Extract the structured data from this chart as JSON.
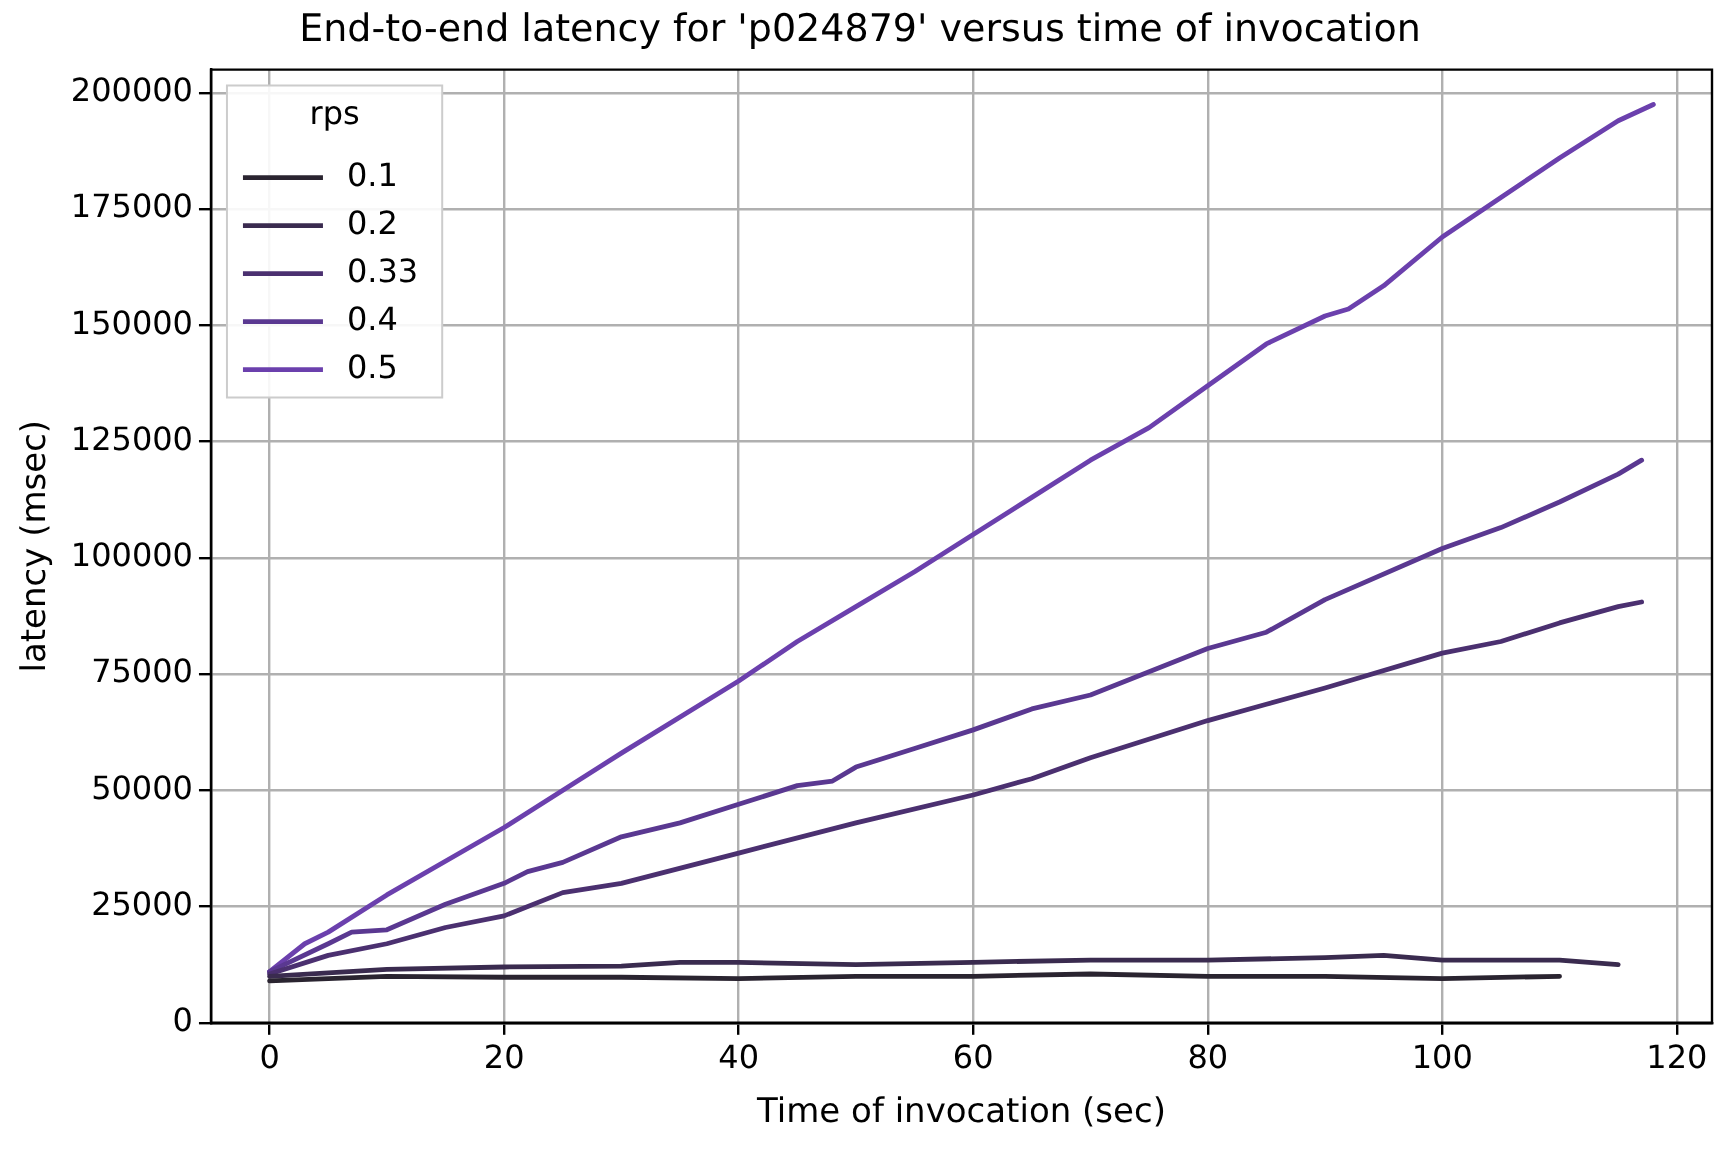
{
  "chart_data": {
    "type": "line",
    "title": "End-to-end latency for 'p024879' versus time of invocation",
    "xlabel": "Time of invocation (sec)",
    "ylabel": "latency (msec)",
    "legend_title": "rps",
    "legend": "top left",
    "grid": true,
    "line_style": "solid",
    "marker": "none",
    "xlim": [
      -5,
      123
    ],
    "xticks": [
      0,
      20,
      40,
      60,
      80,
      100,
      120
    ],
    "ylim": [
      0,
      205000
    ],
    "yticks": [
      0,
      25000,
      50000,
      75000,
      100000,
      125000,
      150000,
      175000,
      200000
    ],
    "series": [
      {
        "name": "0.1",
        "color": "#2a2430",
        "x": [
          0,
          10,
          20,
          30,
          40,
          50,
          60,
          70,
          80,
          90,
          100,
          110
        ],
        "values": [
          9000,
          10000,
          9800,
          9800,
          9500,
          10000,
          10000,
          10500,
          10000,
          10000,
          9500,
          10000
        ]
      },
      {
        "name": "0.2",
        "color": "#3a2b4f",
        "x": [
          0,
          10,
          20,
          30,
          35,
          40,
          50,
          60,
          70,
          80,
          90,
          95,
          100,
          110,
          115
        ],
        "values": [
          10000,
          11500,
          12000,
          12200,
          13000,
          13000,
          12500,
          13000,
          13500,
          13500,
          14000,
          14500,
          13500,
          13500,
          12500
        ]
      },
      {
        "name": "0.33",
        "color": "#4b3070",
        "x": [
          0,
          5,
          10,
          15,
          20,
          25,
          30,
          40,
          50,
          60,
          65,
          70,
          80,
          85,
          90,
          100,
          105,
          110,
          115,
          117
        ],
        "values": [
          10500,
          14500,
          17000,
          20500,
          23000,
          28000,
          30000,
          36500,
          43000,
          49000,
          52500,
          57000,
          65000,
          68500,
          72000,
          79500,
          82000,
          86000,
          89500,
          90500
        ]
      },
      {
        "name": "0.4",
        "color": "#5a3891",
        "x": [
          0,
          5,
          7,
          10,
          15,
          20,
          22,
          25,
          30,
          35,
          40,
          45,
          48,
          50,
          55,
          60,
          65,
          70,
          80,
          85,
          90,
          100,
          105,
          110,
          115,
          117
        ],
        "values": [
          11000,
          17000,
          19500,
          20000,
          25500,
          30000,
          32500,
          34500,
          40000,
          43000,
          47000,
          51000,
          52000,
          55000,
          59000,
          63000,
          67500,
          70500,
          80500,
          84000,
          91000,
          102000,
          106500,
          112000,
          118000,
          121000
        ]
      },
      {
        "name": "0.5",
        "color": "#6b40ad",
        "x": [
          0,
          3,
          5,
          10,
          20,
          30,
          40,
          45,
          50,
          55,
          60,
          65,
          70,
          75,
          80,
          85,
          90,
          92,
          95,
          100,
          105,
          110,
          115,
          118
        ],
        "values": [
          11000,
          17000,
          19500,
          27500,
          42000,
          58000,
          73500,
          82000,
          89500,
          97000,
          105000,
          113000,
          121000,
          128000,
          137000,
          146000,
          152000,
          153500,
          158500,
          169000,
          177500,
          186000,
          194000,
          197500
        ]
      }
    ]
  }
}
